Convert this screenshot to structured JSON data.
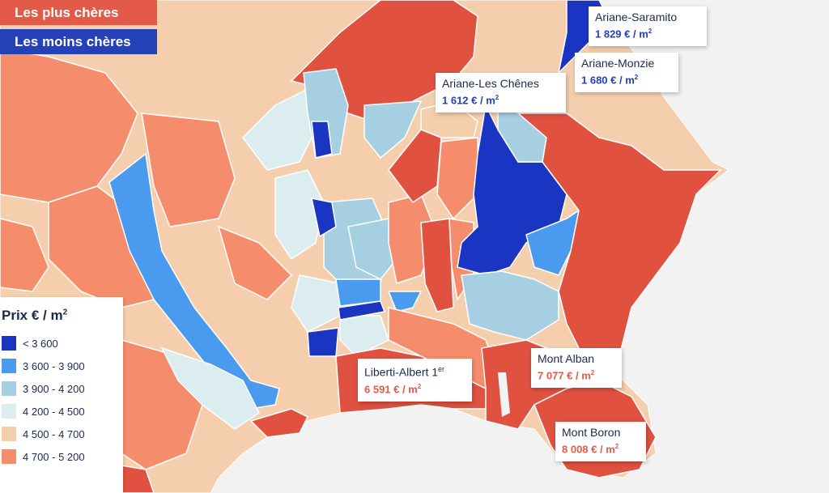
{
  "tags": {
    "most_expensive": "Les plus chères",
    "least_expensive": "Les moins chères"
  },
  "legend": {
    "title": "Prix € / m",
    "title_sup": "2",
    "items": [
      {
        "label": "< 3 600",
        "color": "#1a35c2"
      },
      {
        "label": "3 600 - 3 900",
        "color": "#4a9af0"
      },
      {
        "label": "3 900 - 4 200",
        "color": "#a6cfe2"
      },
      {
        "label": "4 200 - 4 500",
        "color": "#dcedef"
      },
      {
        "label": "4 500 - 4 700",
        "color": "#f5cfad"
      },
      {
        "label": "4 700 - 5 200",
        "color": "#f58c6c"
      }
    ]
  },
  "callouts": {
    "ariane_saramito": {
      "name": "Ariane-Saramito",
      "price": "1 829 € / m",
      "price_sup": "2"
    },
    "ariane_monzie": {
      "name": "Ariane-Monzie",
      "price": "1 680 € / m",
      "price_sup": "2"
    },
    "ariane_les_chenes": {
      "name": "Ariane-Les Chênes",
      "price": "1 612 € / m",
      "price_sup": "2"
    },
    "liberti_albert": {
      "name": "Liberti-Albert 1",
      "name_sup": "er",
      "price": "6 591 € / m",
      "price_sup": "2"
    },
    "mont_alban": {
      "name": "Mont Alban",
      "price": "7 077 € / m",
      "price_sup": "2"
    },
    "mont_boron": {
      "name": "Mont Boron",
      "price": "8 008 € / m",
      "price_sup": "2"
    }
  },
  "colors": {
    "sea": "#f2f2f2",
    "top_tier": "#e05140",
    "tier_4700_5200": "#f58c6c",
    "tier_4500_4700": "#f5cfad",
    "tier_4200_4500": "#dcedef",
    "tier_3900_4200": "#a6cfe2",
    "tier_3600_3900": "#4a9af0",
    "tier_below_3600": "#1a35c2"
  }
}
